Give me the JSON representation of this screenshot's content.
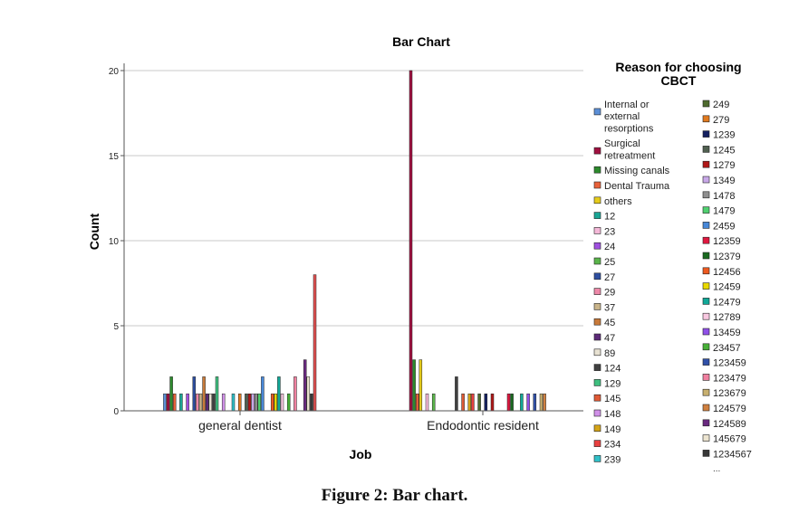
{
  "chart_data": {
    "type": "bar",
    "title": "Bar Chart",
    "xlabel": "Job",
    "ylabel": "Count",
    "ylim": [
      0,
      20
    ],
    "yticks": [
      0,
      5,
      10,
      15,
      20
    ],
    "grid": true,
    "legend_position": "right",
    "legend_title": "Reason for choosing CBCT",
    "legend_more": "...",
    "categories": [
      "general dentist",
      "Endodontic resident"
    ],
    "series": [
      {
        "name": "Internal or external resorptions",
        "color": "#5b8fd6",
        "values": [
          1,
          0
        ]
      },
      {
        "name": "Surgical retreatment",
        "color": "#a01040",
        "values": [
          1,
          20
        ]
      },
      {
        "name": "Missing canals",
        "color": "#2d8a2d",
        "values": [
          2,
          3
        ]
      },
      {
        "name": "Dental Trauma",
        "color": "#e8613a",
        "values": [
          1,
          1
        ]
      },
      {
        "name": "others",
        "color": "#e6cc1a",
        "values": [
          0,
          3
        ]
      },
      {
        "name": "12",
        "color": "#1aa595",
        "values": [
          1,
          0
        ]
      },
      {
        "name": "23",
        "color": "#f5b8d8",
        "values": [
          0,
          1
        ]
      },
      {
        "name": "24",
        "color": "#a050e0",
        "values": [
          1,
          0
        ]
      },
      {
        "name": "25",
        "color": "#5ab54a",
        "values": [
          0,
          1
        ]
      },
      {
        "name": "27",
        "color": "#2e4fa0",
        "values": [
          2,
          0
        ]
      },
      {
        "name": "29",
        "color": "#ee88a8",
        "values": [
          1,
          0
        ]
      },
      {
        "name": "37",
        "color": "#c9b48a",
        "values": [
          1,
          0
        ]
      },
      {
        "name": "45",
        "color": "#c87a3a",
        "values": [
          2,
          0
        ]
      },
      {
        "name": "47",
        "color": "#5c2a78",
        "values": [
          1,
          0
        ]
      },
      {
        "name": "89",
        "color": "#e8e2d2",
        "values": [
          1,
          0
        ]
      },
      {
        "name": "124",
        "color": "#404040",
        "values": [
          1,
          2
        ]
      },
      {
        "name": "129",
        "color": "#3fbf7f",
        "values": [
          2,
          0
        ]
      },
      {
        "name": "145",
        "color": "#e05a36",
        "values": [
          0,
          1
        ]
      },
      {
        "name": "148",
        "color": "#d090e8",
        "values": [
          1,
          0
        ]
      },
      {
        "name": "149",
        "color": "#d4a418",
        "values": [
          0,
          1
        ]
      },
      {
        "name": "234",
        "color": "#e84040",
        "values": [
          0,
          1
        ]
      },
      {
        "name": "239",
        "color": "#30c0c8",
        "values": [
          1,
          0
        ]
      },
      {
        "name": "249",
        "color": "#4e6b2e",
        "values": [
          0,
          1
        ]
      },
      {
        "name": "279",
        "color": "#e07a20",
        "values": [
          1,
          0
        ]
      },
      {
        "name": "1239",
        "color": "#142060",
        "values": [
          0,
          1
        ]
      },
      {
        "name": "1245",
        "color": "#506050",
        "values": [
          1,
          0
        ]
      },
      {
        "name": "1279",
        "color": "#b01818",
        "values": [
          1,
          1
        ]
      },
      {
        "name": "1349",
        "color": "#c8a8e8",
        "values": [
          1,
          0
        ]
      },
      {
        "name": "1478",
        "color": "#909090",
        "values": [
          1,
          0
        ]
      },
      {
        "name": "1479",
        "color": "#50d070",
        "values": [
          1,
          0
        ]
      },
      {
        "name": "2459",
        "color": "#4888d8",
        "values": [
          2,
          0
        ]
      },
      {
        "name": "12359",
        "color": "#e01840",
        "values": [
          0,
          1
        ]
      },
      {
        "name": "12379",
        "color": "#1a6a20",
        "values": [
          0,
          1
        ]
      },
      {
        "name": "12456",
        "color": "#ee5a20",
        "values": [
          1,
          0
        ]
      },
      {
        "name": "12459",
        "color": "#e8d800",
        "values": [
          1,
          0
        ]
      },
      {
        "name": "12479",
        "color": "#10a898",
        "values": [
          2,
          1
        ]
      },
      {
        "name": "12789",
        "color": "#f8c8e0",
        "values": [
          1,
          0
        ]
      },
      {
        "name": "13459",
        "color": "#9050e8",
        "values": [
          0,
          1
        ]
      },
      {
        "name": "23457",
        "color": "#48b038",
        "values": [
          1,
          0
        ]
      },
      {
        "name": "123459",
        "color": "#3050a8",
        "values": [
          0,
          1
        ]
      },
      {
        "name": "123479",
        "color": "#f080a0",
        "values": [
          2,
          0
        ]
      },
      {
        "name": "123679",
        "color": "#c8b070",
        "values": [
          0,
          1
        ]
      },
      {
        "name": "124579",
        "color": "#d08040",
        "values": [
          0,
          1
        ]
      },
      {
        "name": "124589",
        "color": "#6a2a80",
        "values": [
          3,
          0
        ]
      },
      {
        "name": "145679",
        "color": "#ece4d0",
        "values": [
          2,
          0
        ]
      },
      {
        "name": "1234567",
        "color": "#383838",
        "values": [
          1,
          0
        ]
      },
      {
        "name": "...",
        "color": "#e05050",
        "values": [
          8,
          0
        ]
      }
    ],
    "caption": "Figure 2: Bar chart."
  }
}
